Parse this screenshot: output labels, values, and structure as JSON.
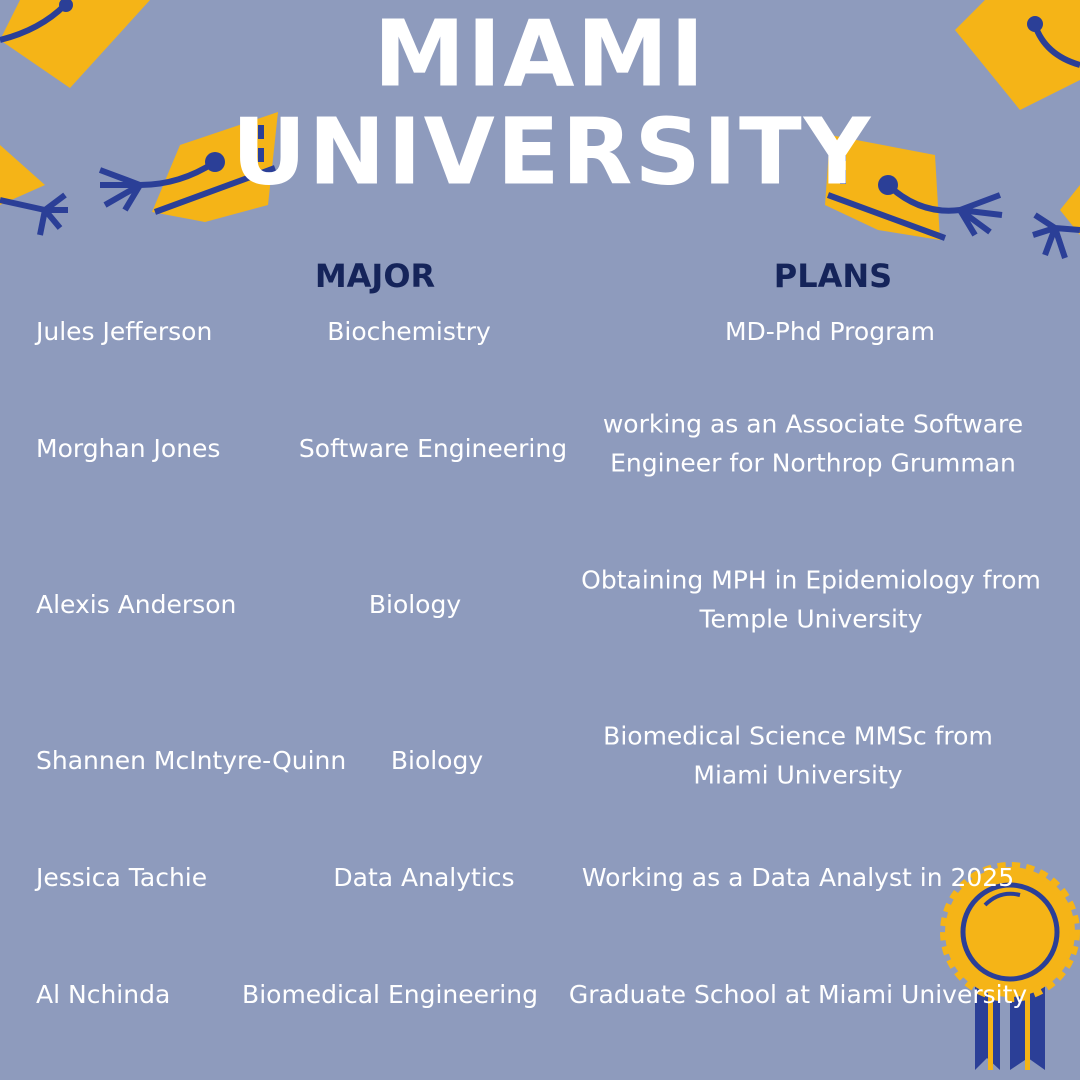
{
  "header": {
    "title_lines": [
      "MIAMI",
      "UNIVERSITY"
    ],
    "columns": [
      "MAJOR",
      "PLANS"
    ]
  },
  "rows": [
    {
      "name": "Jules Jefferson",
      "major": "Biochemistry",
      "plans": [
        "MD-Phd Program"
      ]
    },
    {
      "name": "Morghan Jones",
      "major": "Software Engineering",
      "plans": [
        "working as an Associate Software",
        "Engineer for Northrop Grumman"
      ]
    },
    {
      "name": "Alexis Anderson",
      "major": "Biology",
      "plans": [
        "Obtaining MPH in Epidemiology from",
        "Temple University"
      ]
    },
    {
      "name": "Shannen McIntyre-Quinn",
      "major": "Biology",
      "plans": [
        "Biomedical Science MMSc from",
        "Miami University"
      ]
    },
    {
      "name": "Jessica Tachie",
      "major": "Data Analytics",
      "plans": [
        "Working as a Data Analyst in 2025"
      ]
    },
    {
      "name": "Al Nchinda",
      "major": "Biomedical Engineering",
      "plans": [
        "Graduate School at Miami University"
      ]
    }
  ]
}
